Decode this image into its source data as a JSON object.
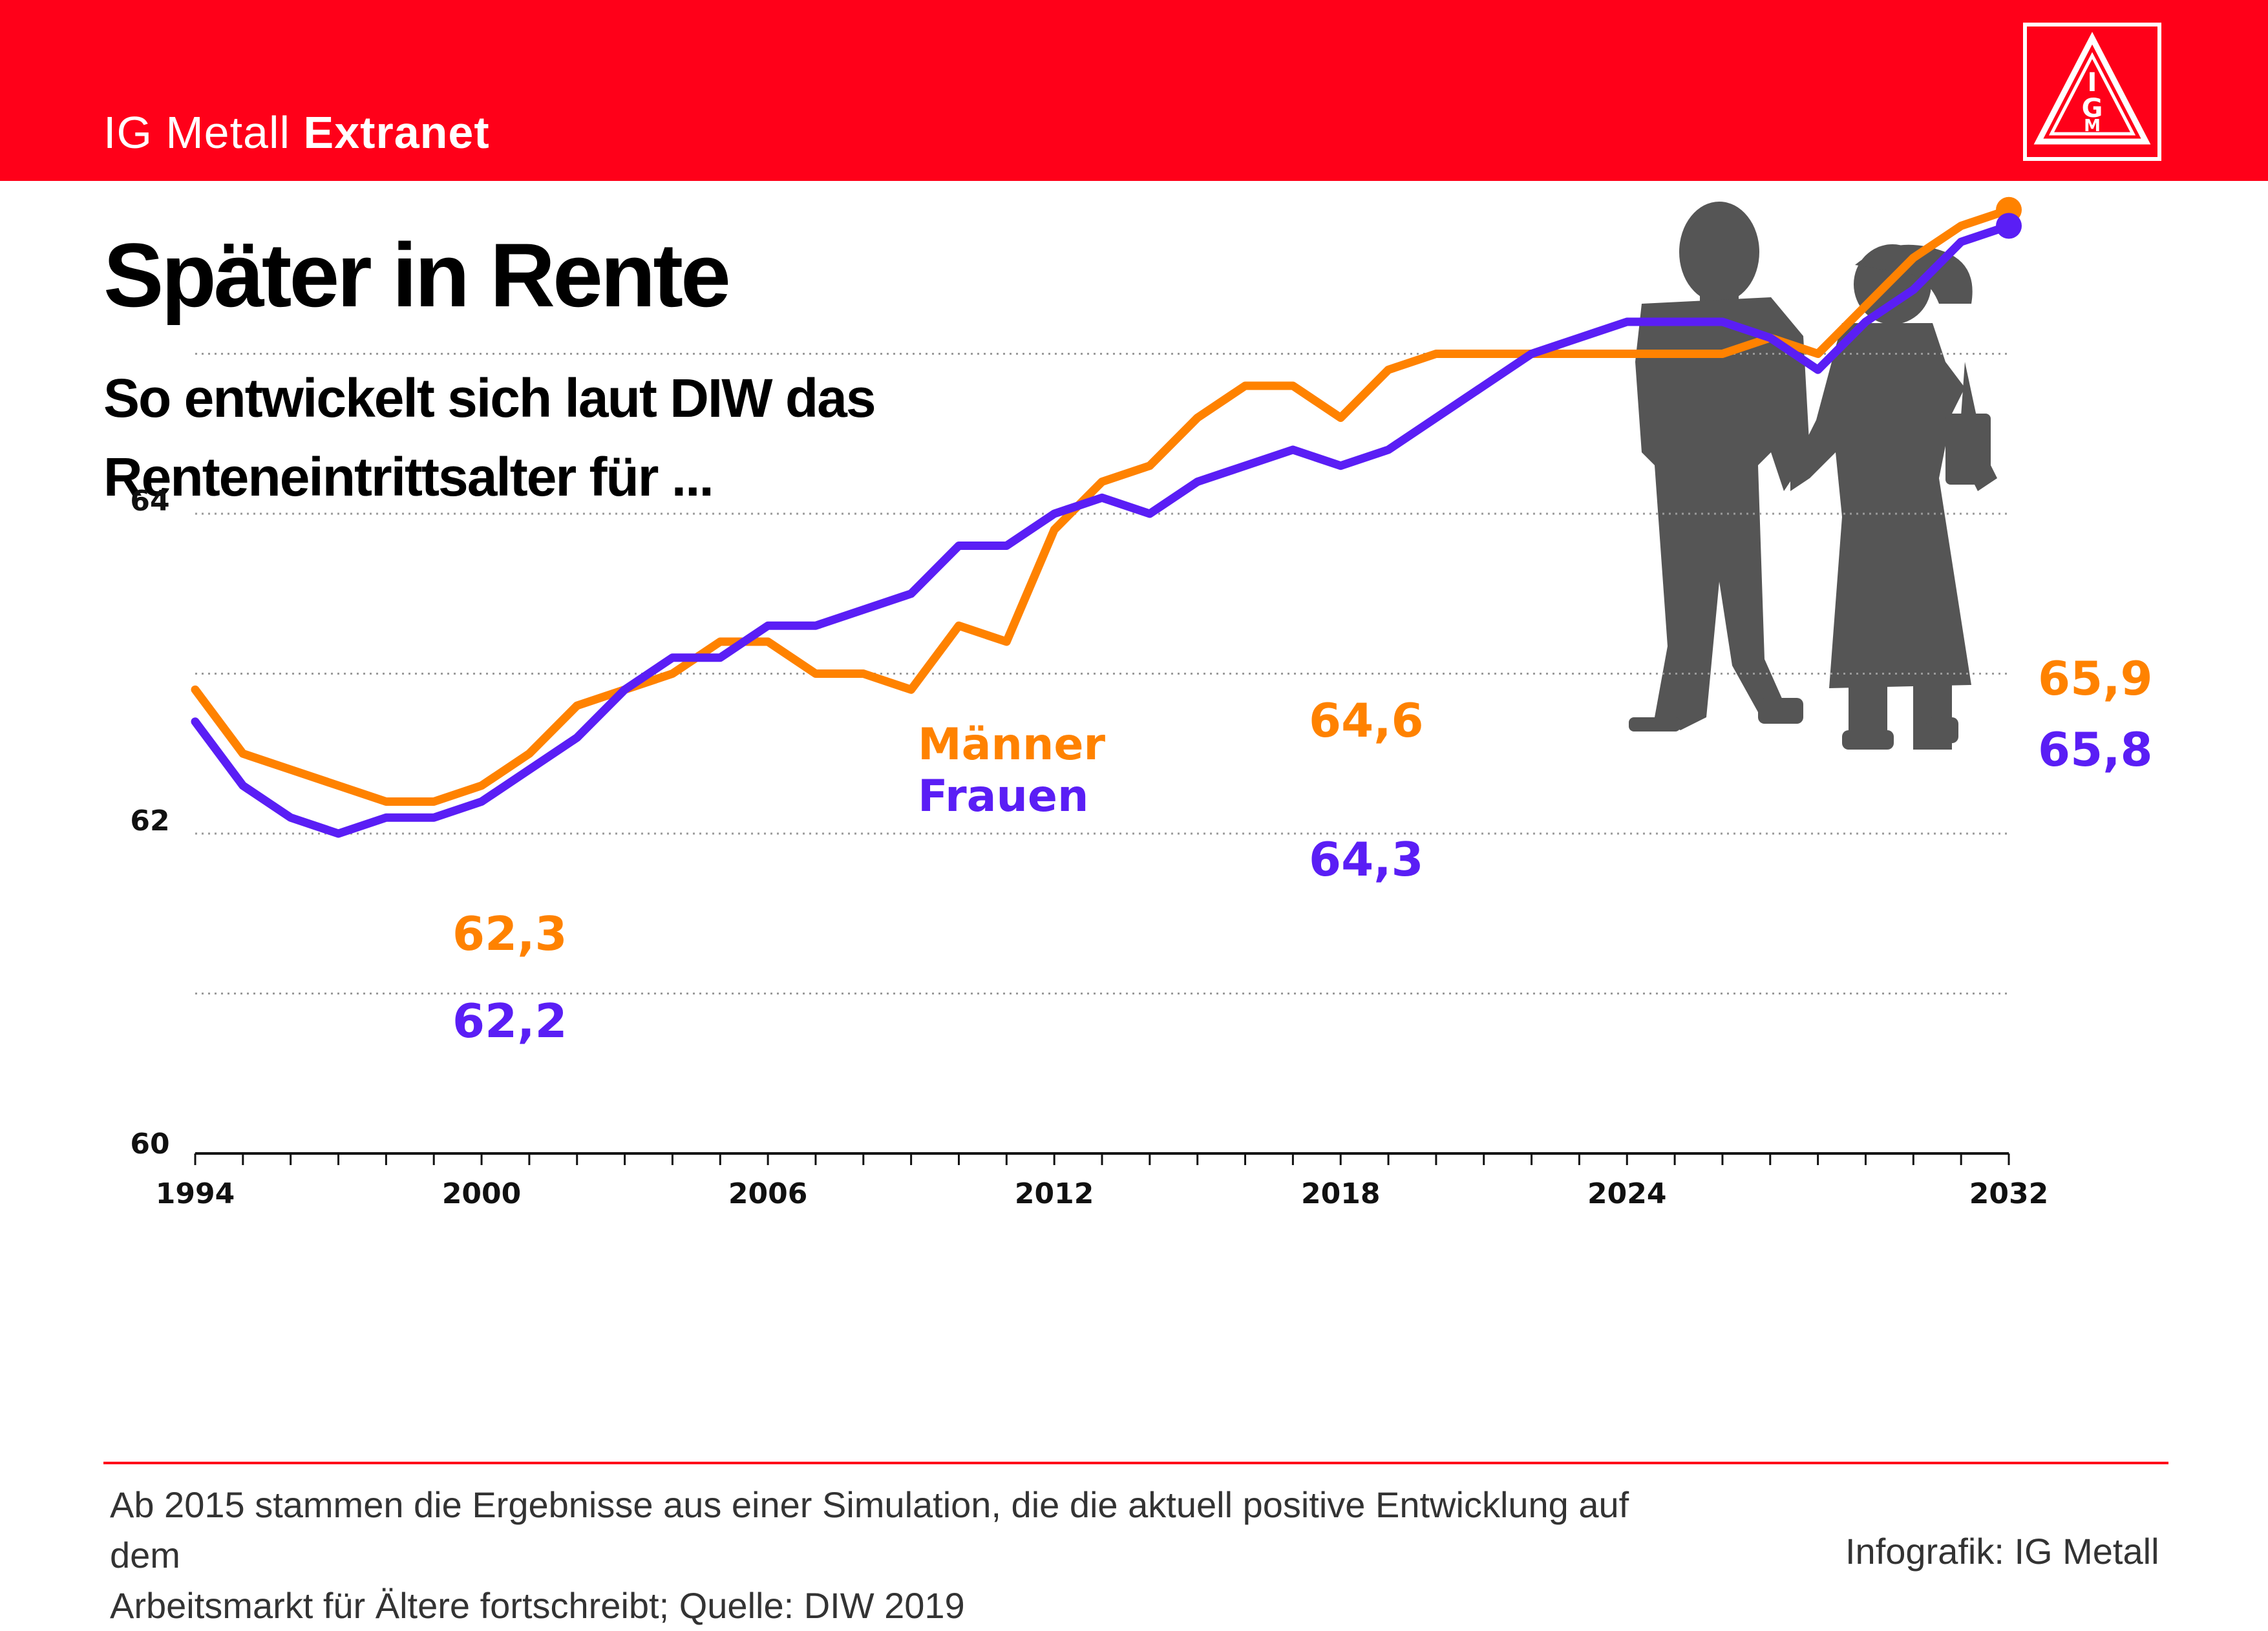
{
  "header": {
    "brand_regular": "IG Metall",
    "brand_bold": "Extranet",
    "logo_text": "IGM"
  },
  "title": "Später in Rente",
  "subtitle": "So entwickelt sich laut DIW das Renteneintrittsalter für ...",
  "colors": {
    "brand_red": "#ff0019",
    "maenner": "#ff8200",
    "frauen": "#5a1ef5",
    "silhouette": "#555555"
  },
  "chart_data": {
    "type": "line",
    "title": "",
    "xlabel": "",
    "ylabel": "",
    "x": [
      1994,
      1995,
      1996,
      1997,
      1998,
      1999,
      2000,
      2001,
      2002,
      2003,
      2004,
      2005,
      2006,
      2007,
      2008,
      2009,
      2010,
      2011,
      2012,
      2013,
      2014,
      2015,
      2016,
      2017,
      2018,
      2019,
      2020,
      2021,
      2022,
      2023,
      2024,
      2025,
      2026,
      2027,
      2028,
      2029,
      2030,
      2031,
      2032
    ],
    "xticks": [
      1994,
      2000,
      2006,
      2012,
      2018,
      2024,
      2032
    ],
    "yticks": [
      60,
      62,
      64
    ],
    "ygrid": [
      61,
      62,
      63,
      64,
      65
    ],
    "ylim": [
      60,
      66.2
    ],
    "xlim": [
      1994,
      2032
    ],
    "grid": "horizontal dotted",
    "series": [
      {
        "name": "Männer",
        "values": [
          62.9,
          62.5,
          62.4,
          62.3,
          62.2,
          62.2,
          62.3,
          62.5,
          62.8,
          62.9,
          63.0,
          63.2,
          63.2,
          63.0,
          63.0,
          62.9,
          63.3,
          63.2,
          63.9,
          64.2,
          64.3,
          64.6,
          64.8,
          64.8,
          64.6,
          64.9,
          65.0,
          65.0,
          65.0,
          65.0,
          65.0,
          65.0,
          65.0,
          65.1,
          65.0,
          65.3,
          65.6,
          65.8,
          65.9
        ]
      },
      {
        "name": "Frauen",
        "values": [
          62.7,
          62.3,
          62.1,
          62.0,
          62.1,
          62.1,
          62.2,
          62.4,
          62.6,
          62.9,
          63.1,
          63.1,
          63.3,
          63.3,
          63.4,
          63.5,
          63.8,
          63.8,
          64.0,
          64.1,
          64.0,
          64.2,
          64.3,
          64.4,
          64.3,
          64.4,
          64.6,
          64.8,
          65.0,
          65.1,
          65.2,
          65.2,
          65.2,
          65.1,
          64.9,
          65.2,
          65.4,
          65.7,
          65.8
        ]
      }
    ],
    "annotations": [
      {
        "text": "62,3",
        "series": "Männer",
        "x": 2000,
        "y": 62.3
      },
      {
        "text": "62,2",
        "series": "Frauen",
        "x": 2000,
        "y": 62.2
      },
      {
        "text": "64,6",
        "series": "Männer",
        "x": 2018,
        "y": 64.6
      },
      {
        "text": "64,3",
        "series": "Frauen",
        "x": 2018,
        "y": 64.3
      },
      {
        "text": "65,9",
        "series": "Männer",
        "x": 2032,
        "y": 65.9
      },
      {
        "text": "65,8",
        "series": "Frauen",
        "x": 2032,
        "y": 65.8
      }
    ],
    "legend": {
      "placement": "inline-center",
      "entries": [
        "Männer",
        "Frauen"
      ]
    }
  },
  "footer": {
    "note_line1": "Ab 2015 stammen die Ergebnisse aus einer Simulation, die die aktuell positive Entwicklung auf dem",
    "note_line2": "Arbeitsmarkt für Ältere fortschreibt; Quelle: DIW 2019",
    "credit": "Infografik: IG Metall"
  }
}
